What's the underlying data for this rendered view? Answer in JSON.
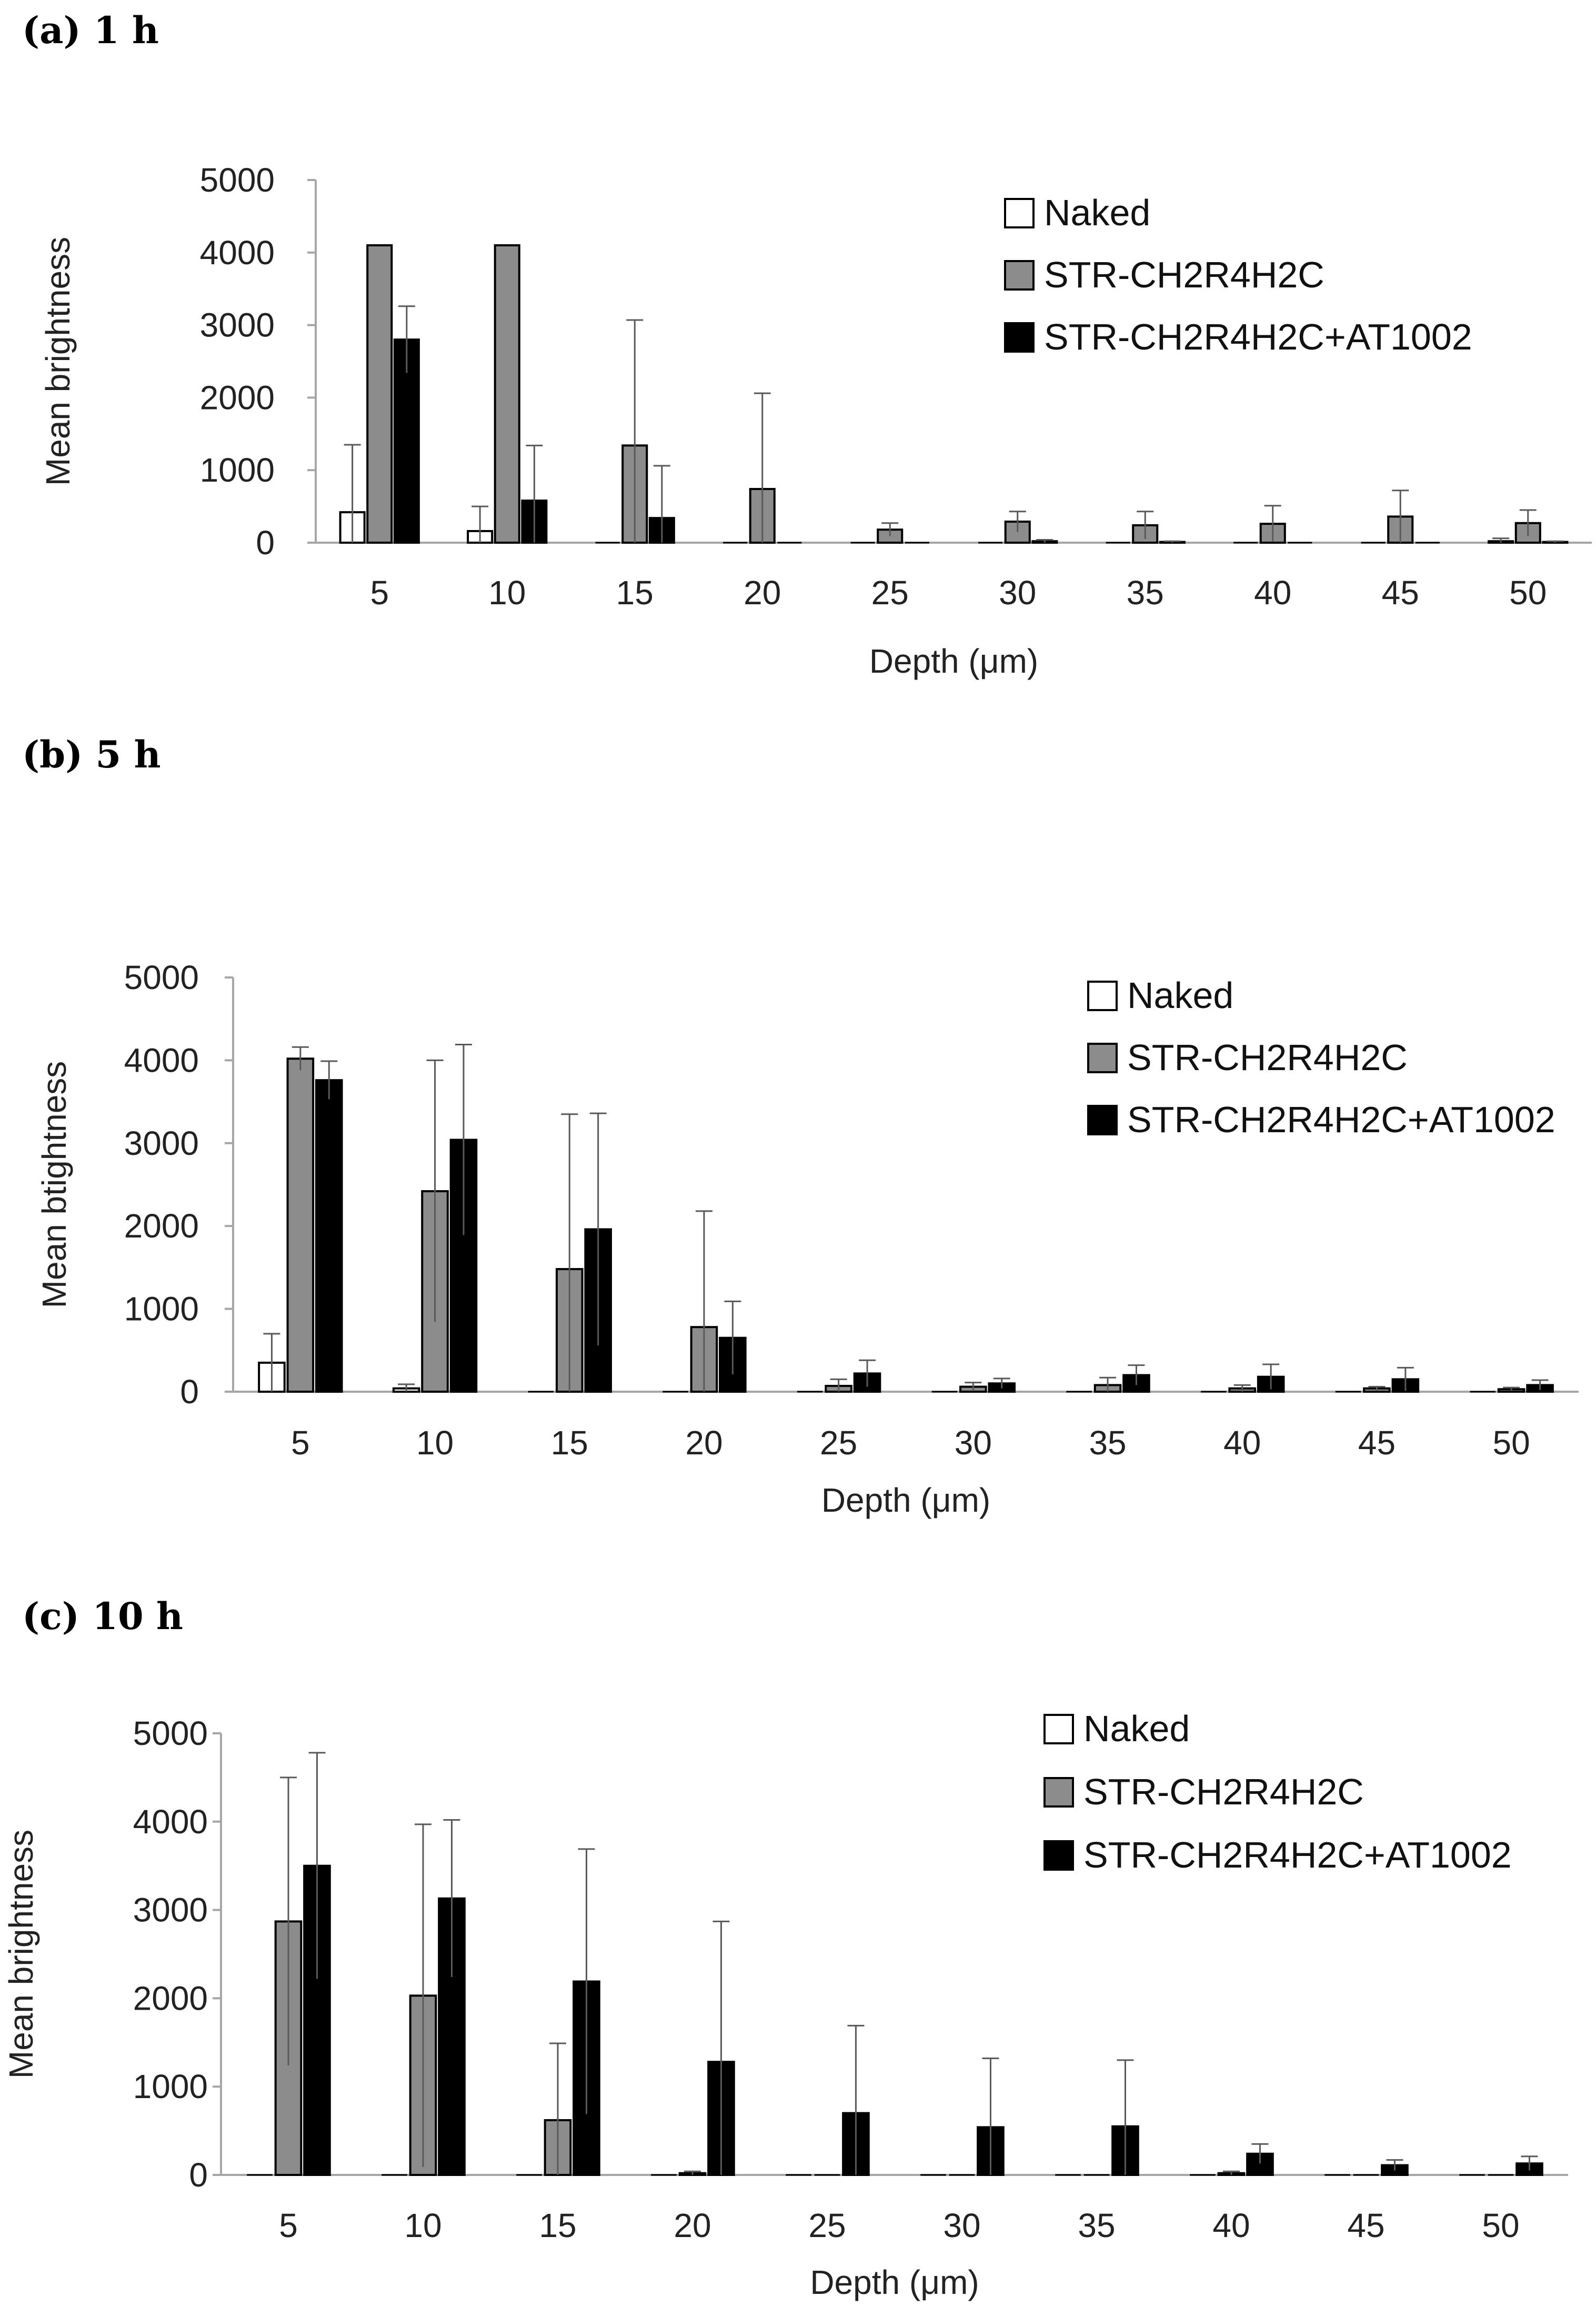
{
  "colors": {
    "naked": "#ffffff",
    "str": "#8c8c8c",
    "str_at": "#000000",
    "axis": "#a6a6a6",
    "error": "#595959"
  },
  "chart_data": [
    {
      "type": "bar",
      "title": "(a) 1 h",
      "xlabel": "Depth (μm)",
      "ylabel": "Mean brightness",
      "ylim": [
        0,
        5000
      ],
      "yticks": [
        0,
        1000,
        2000,
        3000,
        4000,
        5000
      ],
      "categories": [
        "5",
        "10",
        "15",
        "20",
        "25",
        "30",
        "35",
        "40",
        "45",
        "50"
      ],
      "legend": [
        "Naked",
        "STR-CH2R4H2C",
        "STR-CH2R4H2C+AT1002"
      ],
      "series": [
        {
          "name": "Naked",
          "values": [
            420,
            160,
            0,
            0,
            0,
            0,
            0,
            0,
            0,
            20
          ],
          "errors": [
            930,
            340,
            0,
            0,
            0,
            0,
            0,
            0,
            0,
            40
          ]
        },
        {
          "name": "STR-CH2R4H2C",
          "values": [
            4100,
            4100,
            1340,
            740,
            180,
            290,
            240,
            260,
            360,
            270
          ],
          "errors": [
            0,
            0,
            1730,
            1320,
            90,
            140,
            190,
            250,
            360,
            180
          ]
        },
        {
          "name": "STR-CH2R4H2C+AT1002",
          "values": [
            2800,
            580,
            340,
            0,
            0,
            20,
            10,
            0,
            0,
            10
          ],
          "errors": [
            460,
            760,
            720,
            0,
            0,
            20,
            10,
            0,
            0,
            10
          ]
        }
      ]
    },
    {
      "type": "bar",
      "title": "(b) 5 h",
      "xlabel": "Depth (μm)",
      "ylabel": "Mean btightness",
      "ylim": [
        0,
        5000
      ],
      "yticks": [
        0,
        1000,
        2000,
        3000,
        4000,
        5000
      ],
      "categories": [
        "5",
        "10",
        "15",
        "20",
        "25",
        "30",
        "35",
        "40",
        "45",
        "50"
      ],
      "legend": [
        "Naked",
        "STR-CH2R4H2C",
        "STR-CH2R4H2C+AT1002"
      ],
      "series": [
        {
          "name": "Naked",
          "values": [
            350,
            40,
            0,
            0,
            0,
            0,
            0,
            0,
            0,
            0
          ],
          "errors": [
            350,
            50,
            0,
            0,
            0,
            0,
            0,
            0,
            0,
            0
          ]
        },
        {
          "name": "STR-CH2R4H2C",
          "values": [
            4020,
            2420,
            1480,
            780,
            70,
            60,
            80,
            40,
            40,
            30
          ],
          "errors": [
            140,
            1580,
            1870,
            1400,
            80,
            50,
            90,
            40,
            20,
            20
          ]
        },
        {
          "name": "STR-CH2R4H2C+AT1002",
          "values": [
            3760,
            3040,
            1960,
            650,
            220,
            100,
            200,
            180,
            150,
            80
          ],
          "errors": [
            230,
            1150,
            1400,
            440,
            160,
            60,
            120,
            150,
            140,
            60
          ]
        }
      ]
    },
    {
      "type": "bar",
      "title": "(c) 10 h",
      "xlabel": "Depth (μm)",
      "ylabel": "Mean brightness",
      "ylim": [
        0,
        5000
      ],
      "yticks": [
        0,
        1000,
        2000,
        3000,
        4000,
        5000
      ],
      "categories": [
        "5",
        "10",
        "15",
        "20",
        "25",
        "30",
        "35",
        "40",
        "45",
        "50"
      ],
      "legend": [
        "Naked",
        "STR-CH2R4H2C",
        "STR-CH2R4H2C+AT1002"
      ],
      "series": [
        {
          "name": "Naked",
          "values": [
            0,
            0,
            0,
            0,
            0,
            0,
            0,
            0,
            0,
            0
          ],
          "errors": [
            0,
            0,
            0,
            0,
            0,
            0,
            0,
            0,
            0,
            0
          ]
        },
        {
          "name": "STR-CH2R4H2C",
          "values": [
            2870,
            2030,
            620,
            20,
            0,
            0,
            0,
            20,
            0,
            0
          ],
          "errors": [
            1630,
            1940,
            870,
            20,
            0,
            0,
            0,
            20,
            0,
            0
          ]
        },
        {
          "name": "STR-CH2R4H2C+AT1002",
          "values": [
            3500,
            3130,
            2190,
            1280,
            700,
            540,
            550,
            240,
            110,
            130
          ],
          "errors": [
            1280,
            890,
            1500,
            1590,
            990,
            780,
            750,
            110,
            60,
            80
          ]
        }
      ]
    }
  ]
}
